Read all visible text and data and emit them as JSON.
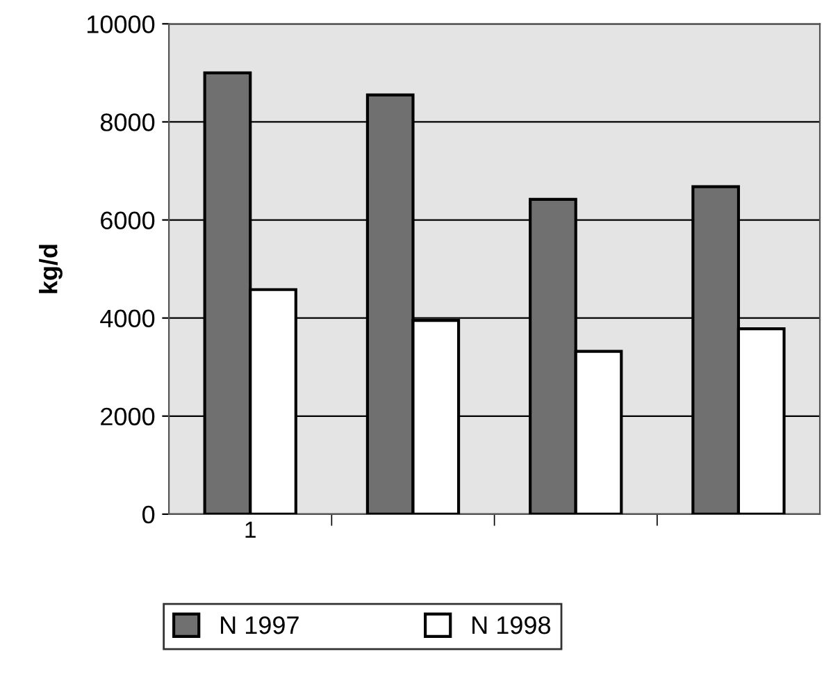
{
  "chart_data": {
    "type": "bar",
    "ylabel": "kg/d",
    "categories": [
      "1",
      null,
      null,
      null
    ],
    "series": [
      {
        "name": "N 1997",
        "color": "#707070",
        "values": [
          9000,
          8550,
          6420,
          6680
        ]
      },
      {
        "name": "N 1998",
        "color": "#ffffff",
        "values": [
          4580,
          3950,
          3320,
          3780
        ]
      }
    ],
    "ylim": [
      0,
      10000
    ],
    "yticks": [
      0,
      2000,
      4000,
      6000,
      8000,
      10000
    ],
    "grid": "y",
    "legend": "bottom"
  }
}
